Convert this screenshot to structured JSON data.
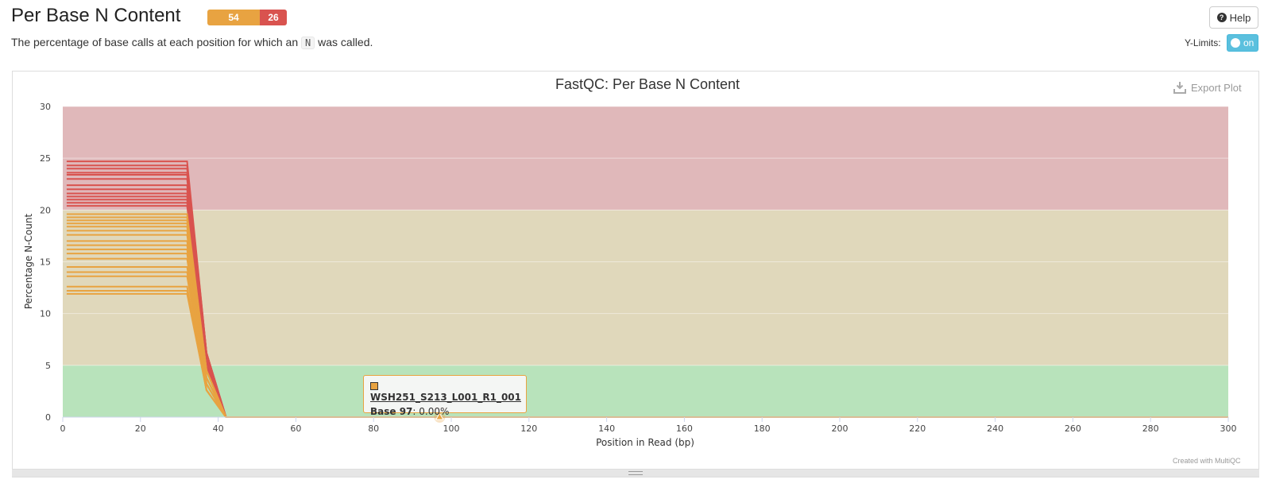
{
  "header": {
    "title": "Per Base N Content",
    "status_warn": "54",
    "status_fail": "26",
    "help_label": "Help",
    "description_before": "The percentage of base calls at each position for which an ",
    "description_code": "N",
    "description_after": " was called.",
    "ylimits_label": "Y-Limits:",
    "ylimits_toggle": "on"
  },
  "plot": {
    "export_label": "Export Plot",
    "credit": "Created with MultiQC"
  },
  "tooltip": {
    "sample": "WSH251_S213_L001_R1_001",
    "base_label": "Base 97",
    "value": ": 0.00%"
  },
  "colors": {
    "warn": "#e8a341",
    "fail": "#d9534f",
    "band_fail": "#e0b8ba",
    "band_warn": "#e0d8bb",
    "band_pass": "#b8e3bb"
  },
  "chart_data": {
    "type": "line",
    "title": "FastQC: Per Base N Content",
    "xlabel": "Position in Read (bp)",
    "ylabel": "Percentage N-Count",
    "xlim": [
      0,
      300
    ],
    "ylim": [
      0,
      30
    ],
    "x_ticks": [
      0,
      20,
      40,
      60,
      80,
      100,
      120,
      140,
      160,
      180,
      200,
      220,
      240,
      260,
      280,
      300
    ],
    "y_ticks": [
      0,
      5,
      10,
      15,
      20,
      25,
      30
    ],
    "bands": [
      {
        "from": 20,
        "to": 30,
        "status": "fail"
      },
      {
        "from": 5,
        "to": 20,
        "status": "warn"
      },
      {
        "from": 0,
        "to": 5,
        "status": "pass"
      }
    ],
    "series_groups": [
      {
        "status": "fail",
        "x": [
          1,
          32,
          37,
          42,
          300
        ],
        "plateau_values": [
          24.7,
          24.3,
          24.0,
          23.6,
          23.4,
          23.0,
          22.4,
          22.0,
          21.6,
          21.3,
          21.0,
          20.7,
          20.4
        ],
        "drop_at_37": [
          6.2,
          5.6,
          5.2,
          4.8
        ],
        "tail_value": 0.0
      },
      {
        "status": "warn",
        "x": [
          1,
          32,
          37,
          42,
          300
        ],
        "plateau_values": [
          19.6,
          19.3,
          19.0,
          18.7,
          18.4,
          18.0,
          17.6,
          17.0,
          16.6,
          16.2,
          15.8,
          15.3,
          14.5,
          14.0,
          13.6,
          12.6,
          12.2,
          11.9
        ],
        "drop_at_37": [
          4.5,
          3.8,
          3.2,
          2.6
        ],
        "tail_value": 0.0
      }
    ],
    "highlight_point": {
      "x": 97,
      "y": 0.0
    }
  }
}
